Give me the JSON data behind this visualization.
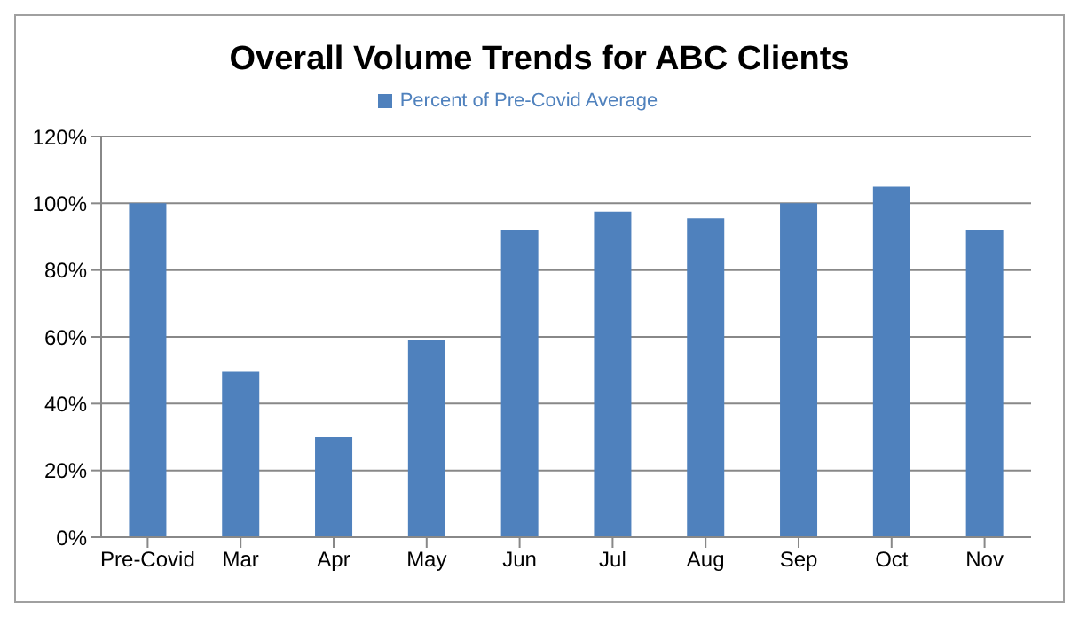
{
  "chart_data": {
    "type": "bar",
    "title": "Overall Volume Trends for ABC Clients",
    "categories": [
      "Pre-Covid",
      "Mar",
      "Apr",
      "May",
      "Jun",
      "Jul",
      "Aug",
      "Sep",
      "Oct",
      "Nov"
    ],
    "series": [
      {
        "name": "Percent of Pre-Covid Average",
        "color": "#4f81bd",
        "values": [
          100,
          49.5,
          30,
          59,
          92,
          97.5,
          95.5,
          100,
          105,
          92
        ]
      }
    ],
    "ylim": [
      0,
      120
    ],
    "yticks": [
      {
        "value": 0,
        "label": "0%"
      },
      {
        "value": 20,
        "label": "20%"
      },
      {
        "value": 40,
        "label": "40%"
      },
      {
        "value": 60,
        "label": "60%"
      },
      {
        "value": 80,
        "label": "80%"
      },
      {
        "value": 100,
        "label": "100%"
      },
      {
        "value": 120,
        "label": "120%"
      }
    ],
    "grid": "y",
    "legend": "top"
  }
}
